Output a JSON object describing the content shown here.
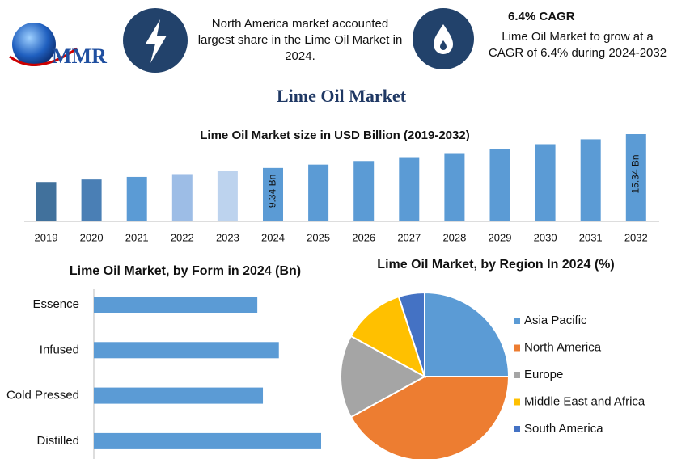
{
  "header": {
    "logo": "MMR",
    "fact_1": "North America market accounted largest share in the Lime Oil Market in 2024.",
    "fact_2_title": "6.4% CAGR",
    "fact_2": "Lime Oil Market to grow at a CAGR of 6.4% during 2024-2032"
  },
  "title": "Lime Oil Market",
  "chart_data": [
    {
      "type": "bar",
      "title": "Lime Oil Market size in USD Billion (2019-2032)",
      "categories": [
        "2019",
        "2020",
        "2021",
        "2022",
        "2023",
        "2024",
        "2025",
        "2026",
        "2027",
        "2028",
        "2029",
        "2030",
        "2031",
        "2032"
      ],
      "values": [
        6.85,
        7.29,
        7.75,
        8.25,
        8.78,
        9.34,
        9.94,
        10.57,
        11.25,
        11.97,
        12.74,
        13.55,
        14.42,
        15.34
      ],
      "value_labels": [
        null,
        null,
        null,
        null,
        null,
        "9.34 Bn",
        null,
        null,
        null,
        null,
        null,
        null,
        null,
        "15.34 Bn"
      ],
      "colors": [
        "#41719c",
        "#4a7fb5",
        "#5b9bd5",
        "#9dbde6",
        "#bdd3ee",
        "#5b9bd5",
        "#5b9bd5",
        "#5b9bd5",
        "#5b9bd5",
        "#5b9bd5",
        "#5b9bd5",
        "#5b9bd5",
        "#5b9bd5",
        "#5b9bd5"
      ]
    },
    {
      "type": "hbar",
      "title": "Lime Oil Market, by Form in 2024 (Bn)",
      "categories": [
        "Essence",
        "Infused",
        "Cold Pressed",
        "Distilled"
      ],
      "values": [
        2.05,
        2.32,
        2.12,
        2.85
      ],
      "color": "#5b9bd5"
    },
    {
      "type": "pie",
      "title": "Lime Oil Market, by Region In 2024 (%)",
      "categories": [
        "Asia Pacific",
        "North America",
        "Europe",
        "Middle East and Africa",
        "South America"
      ],
      "values": [
        25,
        42,
        16,
        12,
        5
      ],
      "colors": [
        "#5b9bd5",
        "#ed7d31",
        "#a5a5a5",
        "#ffc000",
        "#4472c4"
      ]
    }
  ]
}
